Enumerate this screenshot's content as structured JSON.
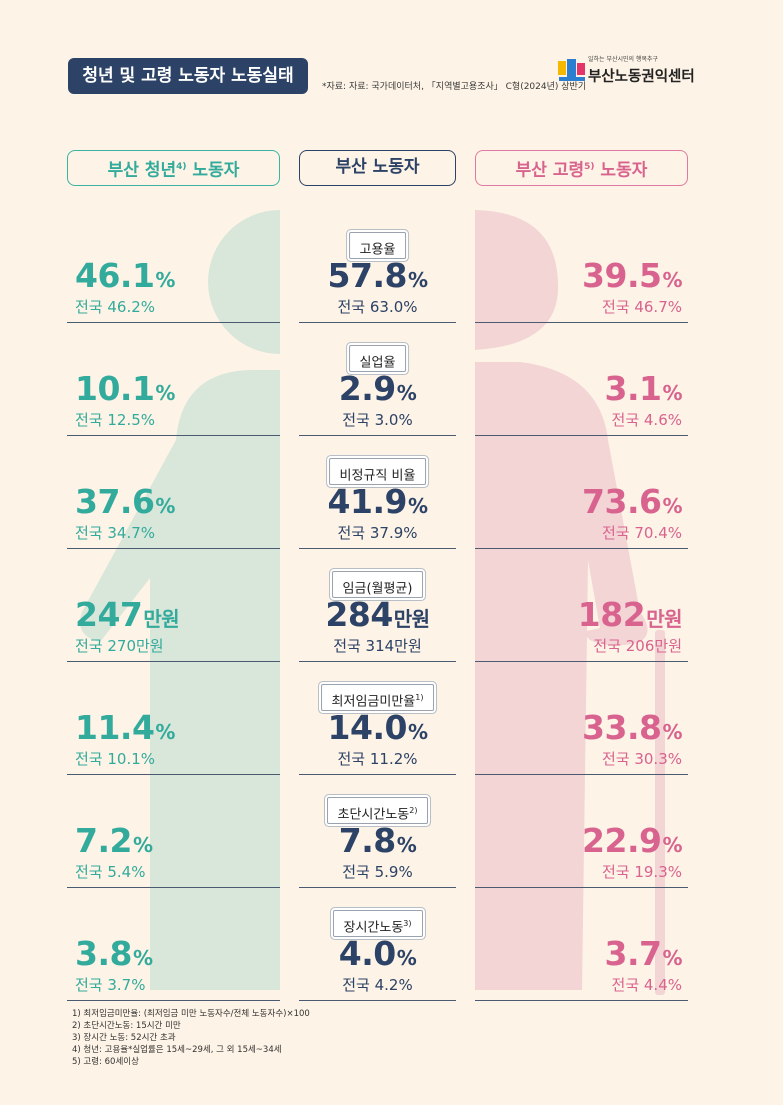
{
  "header": {
    "title": "청년 및 고령 노동자 노동실태",
    "source": "*자료: 자료: 국가데이터처, 「지역별고용조사」 C형(2024년) 상반기"
  },
  "logo": {
    "tagline": "일하는 부산시민의 행복추구",
    "name": "부산노동권익센터",
    "mark_colors": [
      "#f5b800",
      "#2c7fd0",
      "#e5346a"
    ]
  },
  "columns": {
    "youth": {
      "label": "부산 청년",
      "sup": "4)",
      "suffix": " 노동자",
      "color": "#32ab9c"
    },
    "busan": {
      "label": "부산 노동자",
      "color": "#2c4266"
    },
    "elder": {
      "label": "부산 고령",
      "sup": "5)",
      "suffix": " 노동자",
      "color": "#d9638f"
    }
  },
  "metrics": [
    {
      "label": "고용율",
      "sup": "",
      "youth": {
        "value": "46.1",
        "unit": "%",
        "national": "전국 46.2%"
      },
      "busan": {
        "value": "57.8",
        "unit": "%",
        "national": "전국 63.0%"
      },
      "elder": {
        "value": "39.5",
        "unit": "%",
        "national": "전국 46.7%"
      }
    },
    {
      "label": "실업율",
      "sup": "",
      "youth": {
        "value": "10.1",
        "unit": "%",
        "national": "전국 12.5%"
      },
      "busan": {
        "value": "2.9",
        "unit": "%",
        "national": "전국 3.0%"
      },
      "elder": {
        "value": "3.1",
        "unit": "%",
        "national": "전국 4.6%"
      }
    },
    {
      "label": "비정규직 비율",
      "sup": "",
      "youth": {
        "value": "37.6",
        "unit": "%",
        "national": "전국 34.7%"
      },
      "busan": {
        "value": "41.9",
        "unit": "%",
        "national": "전국 37.9%"
      },
      "elder": {
        "value": "73.6",
        "unit": "%",
        "national": "전국 70.4%"
      }
    },
    {
      "label": "임금(월평균)",
      "sup": "",
      "youth": {
        "value": "247",
        "unit": "만원",
        "national": "전국 270만원"
      },
      "busan": {
        "value": "284",
        "unit": "만원",
        "national": "전국 314만원"
      },
      "elder": {
        "value": "182",
        "unit": "만원",
        "national": "전국 206만원"
      }
    },
    {
      "label": "최저임금미만율",
      "sup": "1)",
      "youth": {
        "value": "11.4",
        "unit": "%",
        "national": "전국 10.1%"
      },
      "busan": {
        "value": "14.0",
        "unit": "%",
        "national": "전국 11.2%"
      },
      "elder": {
        "value": "33.8",
        "unit": "%",
        "national": "전국 30.3%"
      }
    },
    {
      "label": "초단시간노동",
      "sup": "2)",
      "youth": {
        "value": "7.2",
        "unit": "%",
        "national": "전국 5.4%"
      },
      "busan": {
        "value": "7.8",
        "unit": "%",
        "national": "전국 5.9%"
      },
      "elder": {
        "value": "22.9",
        "unit": "%",
        "national": "전국 19.3%"
      }
    },
    {
      "label": "장시간노동",
      "sup": "3)",
      "youth": {
        "value": "3.8",
        "unit": "%",
        "national": "전국 3.7%"
      },
      "busan": {
        "value": "4.0",
        "unit": "%",
        "national": "전국 4.2%"
      },
      "elder": {
        "value": "3.7",
        "unit": "%",
        "national": "전국 4.4%"
      }
    }
  ],
  "footnotes": [
    "1) 최저임금미만율: (최저임금 미만 노동자수/전체 노동자수)×100",
    "2) 초단시간노동: 15시간 미만",
    "3) 장시간 노동: 52시간 초과",
    "4) 청년: 고용율*실업률은 15세~29세, 그 외 15세~34세",
    "5) 고령: 60세이상"
  ]
}
